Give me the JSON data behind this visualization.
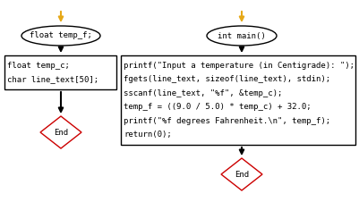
{
  "bg_color": "#ffffff",
  "arrow_color": "#e6a817",
  "flow_arrow_color": "#000000",
  "ellipse1_text": "float temp_f;",
  "ellipse2_text": "int main()",
  "rect1_line1": "float temp_c;",
  "rect1_line2": "char line_text[50];",
  "rect2_lines": [
    "printf(\"Input a temperature (in Centigrade): \");",
    "fgets(line_text, sizeof(line_text), stdin);",
    "sscanf(line_text, \"%f\", &temp_c);",
    "temp_f = ((9.0 / 5.0) * temp_c) + 32.0;",
    "printf(\"%f degrees Fahrenheit.\\n\", temp_f);",
    "return(0);"
  ],
  "diamond_text": "End",
  "ellipse_border": "#000000",
  "rect_border": "#000000",
  "diamond_border": "#cc0000",
  "text_color": "#000000",
  "font_size": 6.5
}
